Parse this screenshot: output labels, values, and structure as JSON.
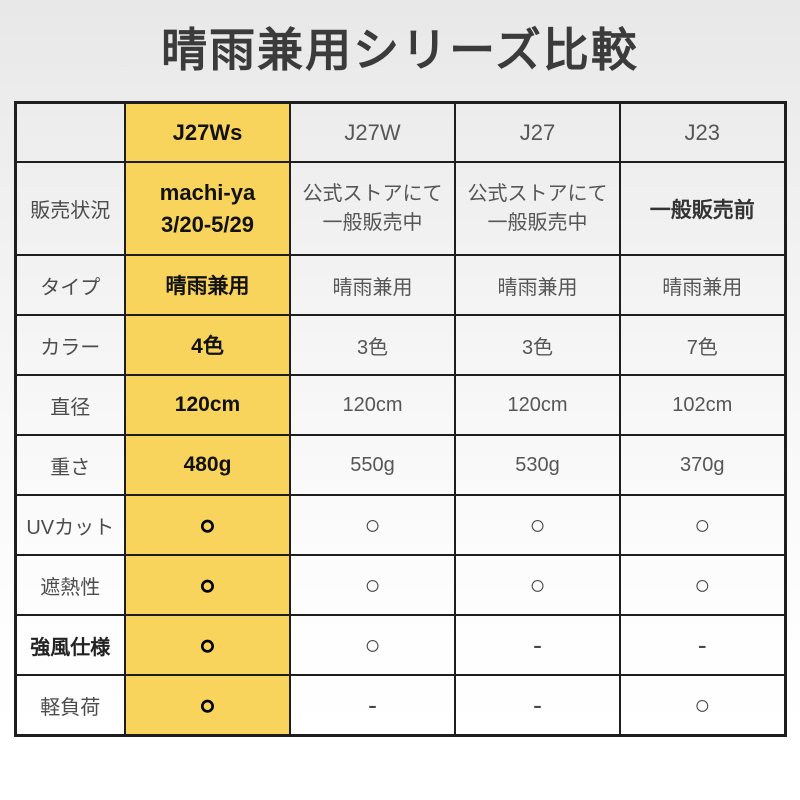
{
  "title": "晴雨兼用シリーズ比較",
  "colors": {
    "highlight_bg": "#F9D45C",
    "border": "#1E1E1E",
    "title_text": "#3B3B3B",
    "cell_text": "#565656"
  },
  "chart_data": {
    "type": "table",
    "title": "晴雨兼用シリーズ比較",
    "columns": [
      "",
      "J27Ws",
      "J27W",
      "J27",
      "J23"
    ],
    "highlighted_column": "J27Ws",
    "rows": [
      {
        "label": "販売状況",
        "cells": [
          [
            "machi-ya",
            "3/20-5/29"
          ],
          [
            "公式ストアにて",
            "一般販売中"
          ],
          [
            "公式ストアにて",
            "一般販売中"
          ],
          [
            "一般販売前"
          ]
        ]
      },
      {
        "label": "タイプ",
        "cells": [
          "晴雨兼用",
          "晴雨兼用",
          "晴雨兼用",
          "晴雨兼用"
        ]
      },
      {
        "label": "カラー",
        "cells": [
          "4色",
          "3色",
          "3色",
          "7色"
        ]
      },
      {
        "label": "直径",
        "cells": [
          "120cm",
          "120cm",
          "120cm",
          "102cm"
        ]
      },
      {
        "label": "重さ",
        "cells": [
          "480g",
          "550g",
          "530g",
          "370g"
        ]
      },
      {
        "label": "UVカット",
        "cells": [
          "○",
          "○",
          "○",
          "○"
        ]
      },
      {
        "label": "遮熱性",
        "cells": [
          "○",
          "○",
          "○",
          "○"
        ]
      },
      {
        "label": "強風仕様",
        "cells": [
          "○",
          "○",
          "-",
          "-"
        ]
      },
      {
        "label": "軽負荷",
        "cells": [
          "○",
          "-",
          "-",
          "○"
        ]
      }
    ]
  }
}
